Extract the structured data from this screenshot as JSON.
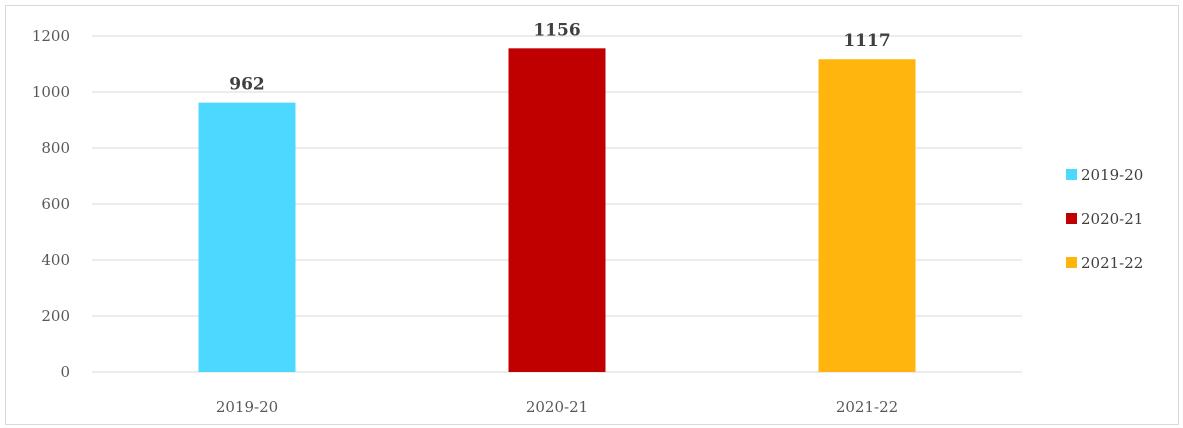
{
  "chart_data": {
    "type": "bar",
    "title": "",
    "xlabel": "",
    "ylabel": "",
    "categories": [
      "2019-20",
      "2020-21",
      "2021-22"
    ],
    "values": [
      962,
      1156,
      1117
    ],
    "data_labels": [
      "962",
      "1156",
      "1117"
    ],
    "colors": [
      "#4dd9ff",
      "#c00000",
      "#ffb50d"
    ],
    "ylim": [
      0,
      1200
    ],
    "yticks": [
      0,
      200,
      400,
      600,
      800,
      1000,
      1200
    ],
    "ytick_labels": [
      "0",
      "200",
      "400",
      "600",
      "800",
      "1000",
      "1200"
    ],
    "grid": true,
    "legend": {
      "placement": "right",
      "entries": [
        "2019-20",
        "2020-21",
        "2021-22"
      ]
    }
  }
}
